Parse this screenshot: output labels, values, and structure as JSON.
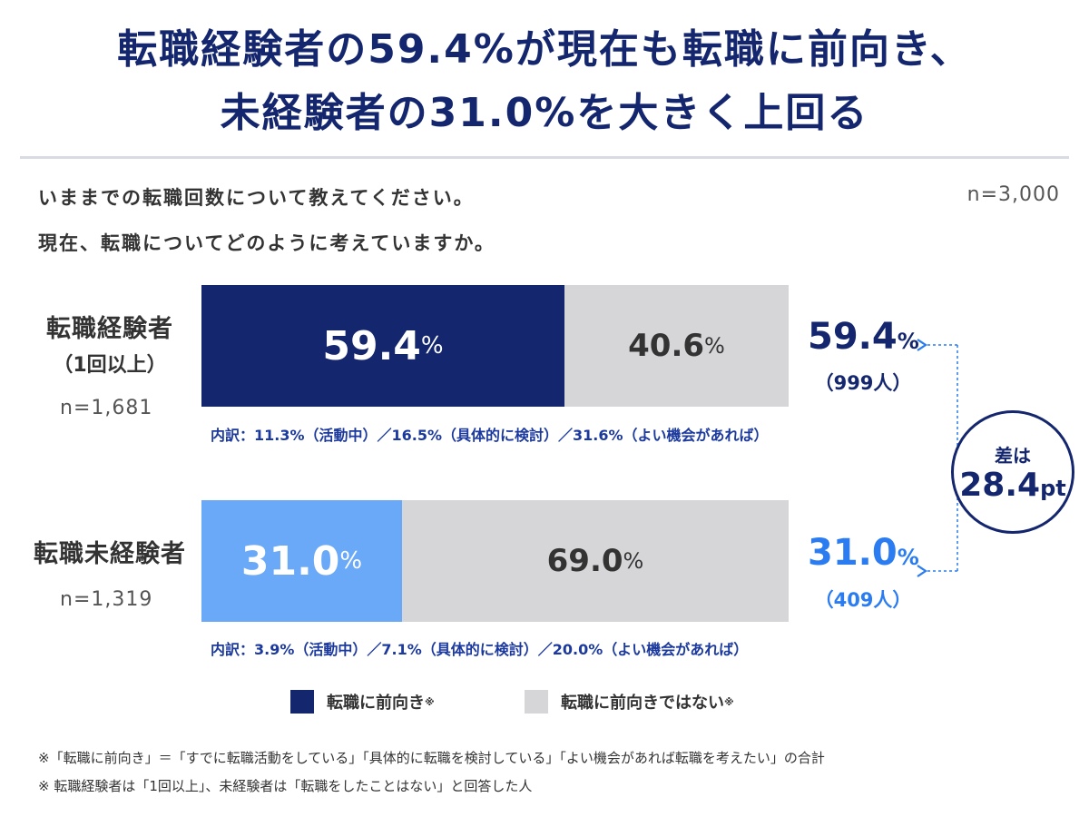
{
  "title": {
    "line1": "転職経験者の59.4%が現在も転職に前向き、",
    "line2": "未経験者の31.0%を大きく上回る"
  },
  "question": {
    "line1": "いままでの転職回数について教えてください。",
    "line2": "現在、転職についてどのように考えていますか。",
    "n_total": "n=3,000"
  },
  "groups": [
    {
      "label": "転職経験者",
      "sublabel": "（1回以上）",
      "n": "n=1,681",
      "positive_value": "59.4",
      "negative_value": "40.6",
      "unit": "%",
      "side_value": "59.4",
      "side_count": "（999人）",
      "breakdown": "内訳：11.3%（活動中）／16.5%（具体的に検討）／31.6%（よい機会があれば）"
    },
    {
      "label": "転職未経験者",
      "n": "n=1,319",
      "positive_value": "31.0",
      "negative_value": "69.0",
      "unit": "%",
      "side_value": "31.0",
      "side_count": "（409人）",
      "breakdown": "内訳：3.9%（活動中）／7.1%（具体的に検討）／20.0%（よい機会があれば）"
    }
  ],
  "difference": {
    "label": "差は",
    "value": "28.4",
    "unit": "pt"
  },
  "legend": {
    "positive": "転職に前向き",
    "negative": "転職に前向きではない",
    "mark": "※"
  },
  "notes": {
    "line1": "※「転職に前向き」＝「すでに転職活動をしている」「具体的に転職を検討している」「よい機会があれば転職を考えたい」の合計",
    "line2": "※ 転職経験者は「1回以上」、未経験者は「転職をしたことはない」と回答した人"
  },
  "colors": {
    "experienced_positive": "#14266e",
    "inexperienced_positive": "#6aa8f8",
    "negative": "#d6d6d8",
    "accent_text": "#2a7cf0"
  },
  "chart_data": {
    "type": "bar",
    "orientation": "horizontal",
    "stacked": true,
    "categories": [
      "転職経験者（1回以上）",
      "転職未経験者"
    ],
    "series": [
      {
        "name": "転職に前向き",
        "values": [
          59.4,
          31.0
        ]
      },
      {
        "name": "転職に前向きではない",
        "values": [
          40.6,
          69.0
        ]
      }
    ],
    "xlim": [
      0,
      100
    ]
  }
}
